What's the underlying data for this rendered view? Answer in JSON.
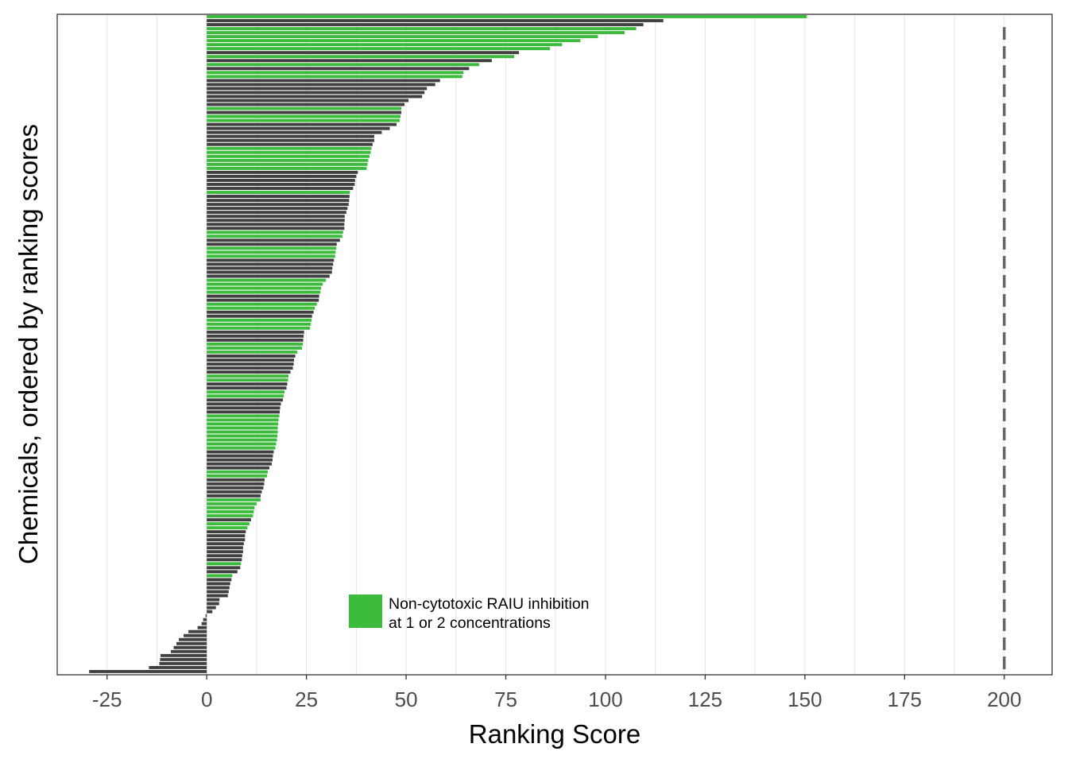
{
  "chart_data": {
    "type": "bar",
    "orientation": "horizontal",
    "xlabel": "Ranking Score",
    "ylabel": "Chemicals, ordered by ranking scores",
    "xlim": [
      -37.5,
      212
    ],
    "x_ticks": [
      -25,
      0,
      25,
      50,
      75,
      100,
      125,
      150,
      175,
      200
    ],
    "x_tick_labels": [
      "-25",
      "0",
      "25",
      "50",
      "75",
      "100",
      "125",
      "150",
      "175",
      "200"
    ],
    "grid": true,
    "reference_line": {
      "x": 200,
      "style": "dashed"
    },
    "colors": {
      "default": "#404040",
      "highlight": "#3dbb3d",
      "grid": "#e5e5e5",
      "refline": "#666666",
      "frame": "#333333"
    },
    "legend": {
      "placement": "center-bottom",
      "entries": [
        {
          "label_line1": "Non-cytotoxic RAIU inhibition",
          "label_line2": "at 1 or 2 concentrations",
          "color": "#3dbb3d"
        }
      ]
    },
    "bar_values": [
      150.5,
      114.5,
      109.5,
      107.7,
      104.8,
      98.1,
      93.7,
      89.1,
      86.1,
      78.3,
      77.1,
      71.5,
      68.3,
      65.8,
      64.4,
      64.1,
      58.5,
      57.3,
      55.2,
      54.6,
      54.0,
      50.6,
      49.6,
      48.8,
      48.8,
      48.6,
      48.4,
      47.6,
      45.9,
      43.9,
      42.0,
      42.0,
      41.6,
      41.3,
      41.1,
      40.8,
      40.5,
      40.3,
      40.1,
      37.9,
      37.5,
      37.2,
      37.1,
      36.7,
      35.9,
      35.8,
      35.7,
      35.6,
      35.3,
      35.0,
      34.6,
      34.6,
      34.5,
      34.5,
      34.2,
      34.0,
      33.4,
      32.6,
      32.5,
      32.3,
      32.2,
      31.9,
      31.7,
      31.5,
      31.4,
      30.8,
      29.9,
      29.1,
      28.7,
      28.5,
      28.2,
      28.1,
      27.6,
      27.1,
      26.8,
      26.4,
      26.3,
      26.1,
      25.9,
      24.4,
      24.3,
      24.2,
      24.1,
      23.9,
      22.7,
      22.2,
      21.9,
      21.8,
      21.6,
      21.0,
      20.5,
      20.4,
      20.2,
      20.0,
      19.5,
      19.3,
      19.1,
      18.6,
      18.4,
      18.3,
      18.2,
      18.0,
      17.9,
      17.8,
      17.8,
      17.7,
      17.6,
      17.4,
      17.2,
      16.8,
      16.6,
      16.5,
      16.3,
      15.7,
      15.3,
      15.1,
      14.5,
      14.4,
      14.2,
      13.8,
      13.5,
      13.5,
      12.5,
      12.0,
      11.8,
      11.6,
      11.1,
      10.7,
      10.2,
      9.8,
      9.6,
      9.6,
      9.3,
      9.1,
      9.1,
      8.9,
      8.8,
      8.6,
      8.4,
      7.7,
      6.4,
      6.2,
      5.9,
      5.7,
      5.5,
      5.3,
      3.2,
      3.1,
      2.3,
      1.4,
      -0.3,
      -0.9,
      -1.3,
      -2.3,
      -4.6,
      -5.8,
      -7.0,
      -7.6,
      -8.3,
      -9.0,
      -11.6,
      -11.7,
      -11.9,
      -14.5,
      -29.5
    ],
    "highlighted_indices": [
      0,
      3,
      4,
      5,
      6,
      7,
      8,
      10,
      12,
      14,
      15,
      23,
      25,
      26,
      33,
      34,
      35,
      36,
      37,
      38,
      44,
      54,
      55,
      58,
      59,
      60,
      66,
      67,
      68,
      69,
      72,
      73,
      76,
      77,
      78,
      82,
      83,
      84,
      90,
      91,
      94,
      95,
      100,
      101,
      102,
      103,
      104,
      105,
      106,
      107,
      108,
      114,
      115,
      121,
      122,
      123,
      124,
      125,
      127,
      128,
      137,
      140
    ]
  }
}
